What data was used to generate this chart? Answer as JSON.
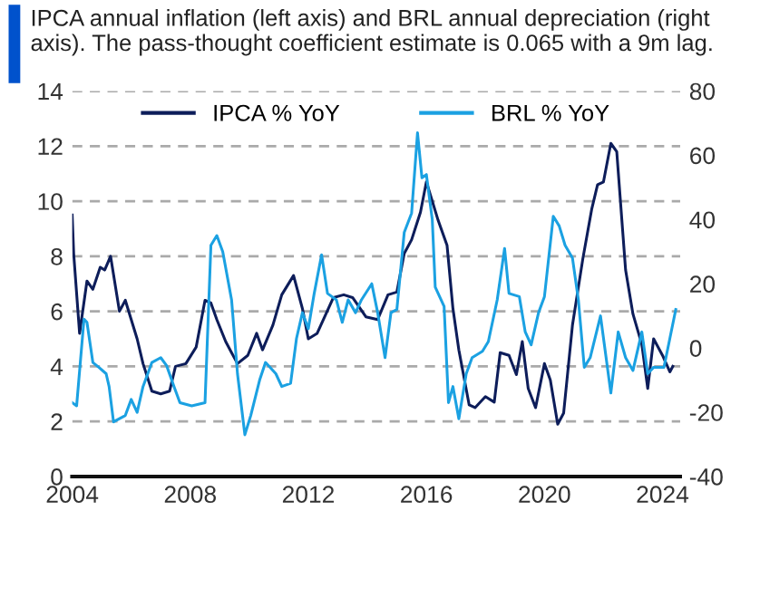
{
  "chart_data": {
    "type": "line",
    "title": "IPCA annual inflation (left axis) and BRL annual depreciation (right axis). The pass-thought coefficient estimate is 0.065 with a 9m lag.",
    "xlim": [
      2004,
      2024.6
    ],
    "xticks": [
      2004,
      2008,
      2012,
      2016,
      2020,
      2024
    ],
    "ylim": [
      0,
      14
    ],
    "yticks": [
      0,
      2,
      4,
      6,
      8,
      10,
      12,
      14
    ],
    "y2lim": [
      -40,
      80
    ],
    "y2ticks": [
      -40,
      -20,
      0,
      20,
      40,
      60,
      80
    ],
    "grid": "y",
    "legend": "top",
    "series": [
      {
        "name": "IPCA % YoY",
        "color": "#0d1d5a",
        "x": [
          2004.0,
          2004.05,
          2004.25,
          2004.5,
          2004.7,
          2004.95,
          2005.1,
          2005.3,
          2005.6,
          2005.8,
          2006.0,
          2006.2,
          2006.4,
          2006.7,
          2007.0,
          2007.3,
          2007.5,
          2007.85,
          2008.2,
          2008.5,
          2008.7,
          2008.9,
          2009.2,
          2009.6,
          2009.95,
          2010.25,
          2010.45,
          2010.8,
          2011.1,
          2011.5,
          2011.8,
          2012.0,
          2012.3,
          2012.85,
          2013.2,
          2013.5,
          2013.95,
          2014.35,
          2014.7,
          2015.0,
          2015.25,
          2015.5,
          2015.8,
          2016.0,
          2016.2,
          2016.4,
          2016.7,
          2016.9,
          2017.1,
          2017.45,
          2017.65,
          2018.0,
          2018.3,
          2018.5,
          2018.8,
          2019.05,
          2019.25,
          2019.45,
          2019.7,
          2020.0,
          2020.2,
          2020.45,
          2020.65,
          2020.95,
          2021.3,
          2021.6,
          2021.8,
          2022.0,
          2022.25,
          2022.45,
          2022.75,
          2023.0,
          2023.3,
          2023.5,
          2023.7,
          2024.0,
          2024.25,
          2024.35
        ],
        "values": [
          9.5,
          8.1,
          5.2,
          7.1,
          6.8,
          7.6,
          7.5,
          8.0,
          6.0,
          6.4,
          5.7,
          5.0,
          4.1,
          3.1,
          3.0,
          3.1,
          4.0,
          4.1,
          4.7,
          6.4,
          6.3,
          5.7,
          4.9,
          4.1,
          4.4,
          5.2,
          4.6,
          5.5,
          6.6,
          7.3,
          6.1,
          5.0,
          5.2,
          6.5,
          6.6,
          6.5,
          5.8,
          5.7,
          6.6,
          6.7,
          8.1,
          8.6,
          9.6,
          10.7,
          10.0,
          9.3,
          8.4,
          6.1,
          4.6,
          2.6,
          2.5,
          2.9,
          2.7,
          4.5,
          4.4,
          3.7,
          4.9,
          3.2,
          2.5,
          4.1,
          3.5,
          1.9,
          2.3,
          5.5,
          7.9,
          9.7,
          10.6,
          10.7,
          12.1,
          11.8,
          7.5,
          5.9,
          4.8,
          3.2,
          5.0,
          4.4,
          3.8,
          4.0
        ]
      },
      {
        "name": "BRL % YoY",
        "color": "#1ba1e2",
        "axis": "y2",
        "x": [
          2004.0,
          2004.15,
          2004.4,
          2004.5,
          2004.7,
          2004.9,
          2005.15,
          2005.25,
          2005.4,
          2005.8,
          2006.0,
          2006.2,
          2006.4,
          2006.7,
          2007.0,
          2007.2,
          2007.45,
          2007.65,
          2008.05,
          2008.5,
          2008.7,
          2008.9,
          2009.1,
          2009.4,
          2009.6,
          2009.85,
          2010.05,
          2010.35,
          2010.55,
          2010.9,
          2011.1,
          2011.4,
          2011.6,
          2011.8,
          2012.0,
          2012.2,
          2012.45,
          2012.65,
          2012.95,
          2013.15,
          2013.35,
          2013.6,
          2013.8,
          2014.15,
          2014.35,
          2014.6,
          2014.8,
          2015.0,
          2015.25,
          2015.5,
          2015.7,
          2015.85,
          2016.0,
          2016.2,
          2016.3,
          2016.6,
          2016.75,
          2016.9,
          2017.1,
          2017.35,
          2017.55,
          2017.9,
          2018.1,
          2018.4,
          2018.65,
          2018.8,
          2019.15,
          2019.35,
          2019.55,
          2019.8,
          2020.0,
          2020.3,
          2020.5,
          2020.7,
          2020.95,
          2021.15,
          2021.35,
          2021.55,
          2021.9,
          2022.25,
          2022.5,
          2022.75,
          2023.0,
          2023.3,
          2023.5,
          2023.7,
          2024.05,
          2024.25,
          2024.45
        ],
        "values": [
          -17,
          -18,
          9,
          8,
          -4.5,
          -6,
          -8,
          -12,
          -23,
          -21,
          -16,
          -20,
          -12,
          -4.5,
          -3,
          -5.5,
          -12,
          -17,
          -18,
          -17,
          32,
          35,
          30,
          15,
          -8,
          -27,
          -21,
          -10,
          -4.5,
          -8,
          -12,
          -11,
          3,
          11,
          6,
          17,
          29,
          17,
          15,
          8,
          15,
          11,
          15,
          20,
          11,
          -3,
          11,
          12,
          36,
          42,
          67,
          53,
          54,
          40,
          19,
          13,
          -17,
          -12,
          -22,
          -8,
          -3,
          -1,
          2,
          15,
          31,
          17,
          16,
          5,
          1,
          11,
          16,
          41,
          38,
          32,
          28,
          15,
          -6,
          -3,
          10,
          -14,
          5,
          -3,
          -7,
          5,
          -8,
          -6,
          -6,
          3,
          12
        ]
      }
    ]
  }
}
